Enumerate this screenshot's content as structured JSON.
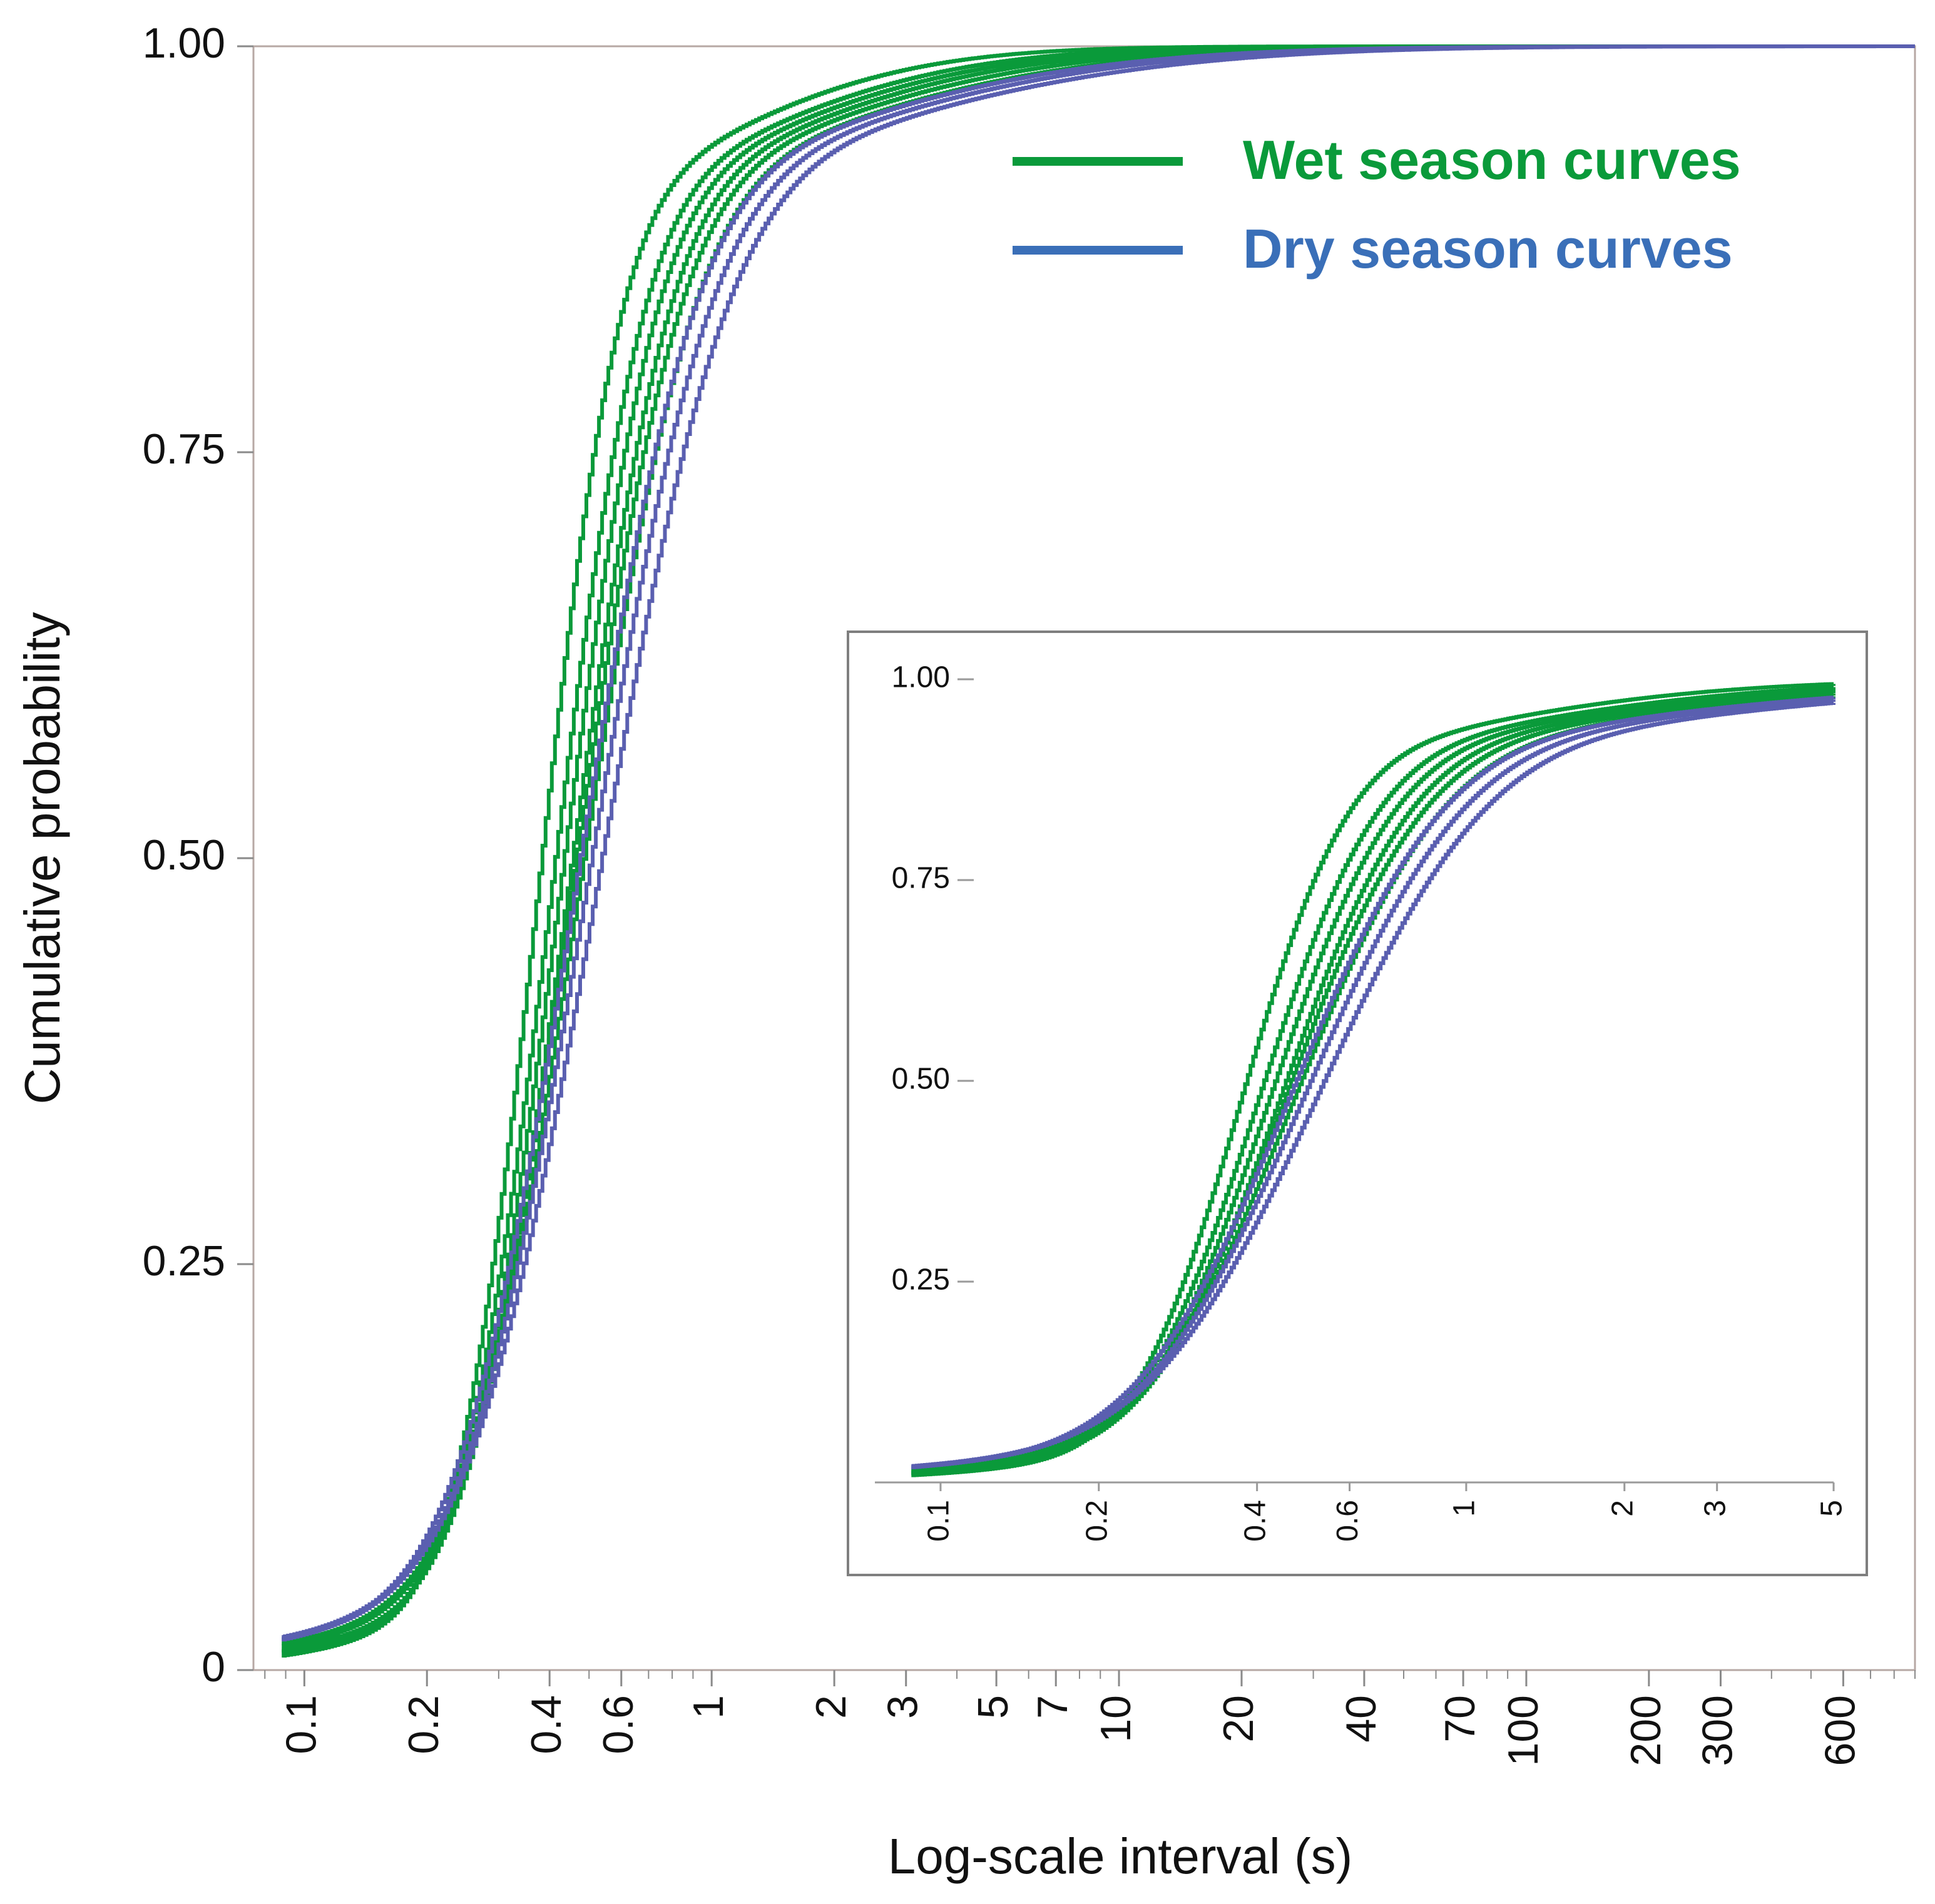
{
  "chart_data": [
    {
      "type": "line",
      "title": "",
      "xlabel": "Log-scale interval (s)",
      "ylabel": "Cumulative probability",
      "xscale": "log",
      "xlim": [
        0.075,
        900
      ],
      "ylim": [
        0,
        1
      ],
      "x_tick_labels": [
        "0.1",
        "0.2",
        "0.4",
        "0.6",
        "1",
        "2",
        "3",
        "5",
        "7",
        "10",
        "20",
        "40",
        "70",
        "100",
        "200",
        "300",
        "600"
      ],
      "x_ticks": [
        0.1,
        0.2,
        0.4,
        0.6,
        1,
        2,
        3,
        5,
        7,
        10,
        20,
        40,
        70,
        100,
        200,
        300,
        600
      ],
      "y_tick_labels": [
        "0",
        "0.25",
        "0.50",
        "0.75",
        "1.00"
      ],
      "y_ticks": [
        0,
        0.25,
        0.5,
        0.75,
        1.0
      ],
      "grid": false,
      "legend_position": "top-right",
      "legend": [
        {
          "label": "Wet season curves",
          "color": "#0a9a3a"
        },
        {
          "label": "Dry season curves",
          "color": "#3a6fb8"
        }
      ],
      "series": [
        {
          "group": "wet",
          "color": "#0a9a3a",
          "median": 0.37,
          "spread": 0.36
        },
        {
          "group": "wet",
          "color": "#0a9a3a",
          "median": 0.4,
          "spread": 0.4
        },
        {
          "group": "wet",
          "color": "#0a9a3a",
          "median": 0.42,
          "spread": 0.42
        },
        {
          "group": "wet",
          "color": "#0a9a3a",
          "median": 0.44,
          "spread": 0.44
        },
        {
          "group": "wet",
          "color": "#0a9a3a",
          "median": 0.45,
          "spread": 0.47
        },
        {
          "group": "wet",
          "color": "#0a9a3a",
          "median": 0.47,
          "spread": 0.5
        },
        {
          "group": "dry",
          "color": "#5a5fb0",
          "median": 0.46,
          "spread": 0.52
        },
        {
          "group": "dry",
          "color": "#5a5fb0",
          "median": 0.49,
          "spread": 0.54
        },
        {
          "group": "dry",
          "color": "#5a5fb0",
          "median": 0.52,
          "spread": 0.57
        }
      ]
    },
    {
      "type": "line",
      "role": "inset",
      "xscale": "log",
      "xlim": [
        0.075,
        5
      ],
      "ylim": [
        0,
        1
      ],
      "x_tick_labels": [
        "0.1",
        "0.2",
        "0.4",
        "0.6",
        "1",
        "2",
        "3",
        "5"
      ],
      "x_ticks": [
        0.1,
        0.2,
        0.4,
        0.6,
        1,
        2,
        3,
        5
      ],
      "y_tick_labels": [
        "0.25",
        "0.50",
        "0.75",
        "1.00"
      ],
      "y_ticks": [
        0.25,
        0.5,
        0.75,
        1.0
      ],
      "series_same_as_main": true
    }
  ]
}
